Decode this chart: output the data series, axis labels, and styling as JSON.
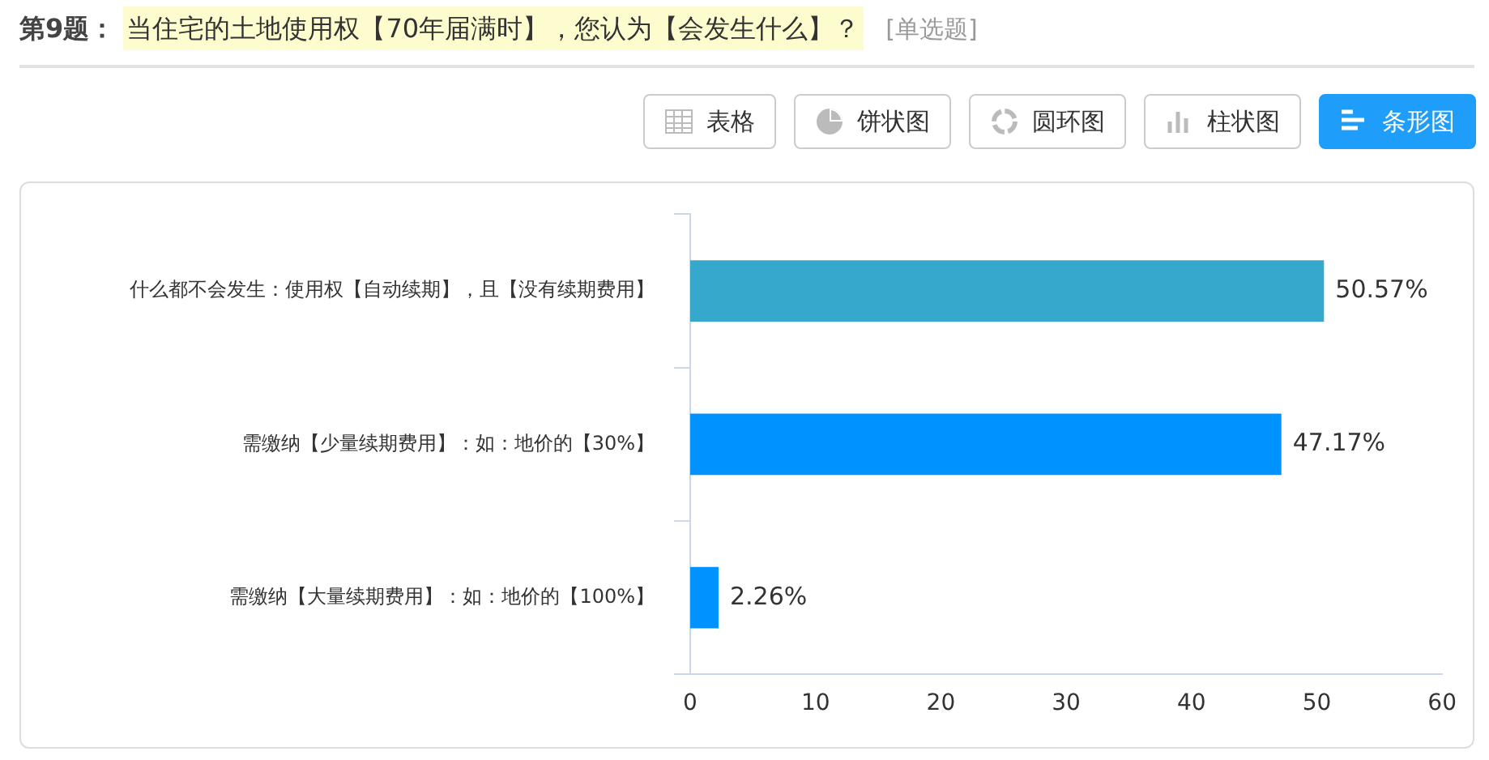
{
  "chart_data": {
    "type": "bar",
    "orientation": "horizontal",
    "title": "第9题：",
    "subtitle": "当住宅的土地使用权【70年届满时】，您认为【会发生什么】？",
    "annotations": [
      "[单选题]",
      "表格",
      "饼状图",
      "圆环图",
      "柱状图",
      "条形图"
    ],
    "categories": [
      "什么都不会发生：使用权【自动续期】，且【没有续期费用】",
      "需缴纳【少量续期费用】：如：地价的【30%】",
      "需缴纳【大量续期费用】：如：地价的【100%】"
    ],
    "values": [
      50.57,
      47.17,
      2.26
    ],
    "colors": [
      "#35a8cc",
      "#0093ff",
      "#0093ff"
    ],
    "value_labels": [
      "50.57%",
      "47.17%",
      "2.26%"
    ],
    "xlim": [
      0,
      60
    ],
    "xticks": [
      0,
      10,
      20,
      30,
      40,
      50,
      60
    ],
    "grid": false,
    "legend": false
  }
}
